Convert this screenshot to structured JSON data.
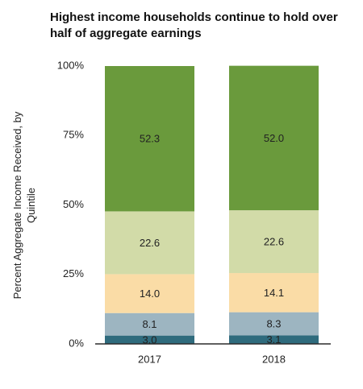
{
  "chart_data": {
    "type": "stacked_bar",
    "title": "Highest income households continue to hold over half of aggregate earnings",
    "ylabel": "Percent Aggregate Income Received, by Quintile",
    "categories": [
      "2017",
      "2018"
    ],
    "series": [
      {
        "color": "#2f6b7d",
        "values": [
          3.0,
          3.1
        ],
        "value_labels": [
          "3.0",
          "3.1"
        ]
      },
      {
        "color": "#9db5c1",
        "values": [
          8.1,
          8.3
        ],
        "value_labels": [
          "8.1",
          "8.3"
        ]
      },
      {
        "color": "#fadca6",
        "values": [
          14.0,
          14.1
        ],
        "value_labels": [
          "14.0",
          "14.1"
        ]
      },
      {
        "color": "#d2dba8",
        "values": [
          22.6,
          22.6
        ],
        "value_labels": [
          "22.6",
          "22.6"
        ]
      },
      {
        "color": "#6a9a3c",
        "values": [
          52.3,
          52.0
        ],
        "value_labels": [
          "52.3",
          "52.0"
        ]
      }
    ],
    "ylim": [
      0,
      100
    ],
    "yticks": [
      {
        "value": 0,
        "label": "0%"
      },
      {
        "value": 25,
        "label": "25%"
      },
      {
        "value": 50,
        "label": "50%"
      },
      {
        "value": 75,
        "label": "75%"
      },
      {
        "value": 100,
        "label": "100%"
      }
    ]
  }
}
